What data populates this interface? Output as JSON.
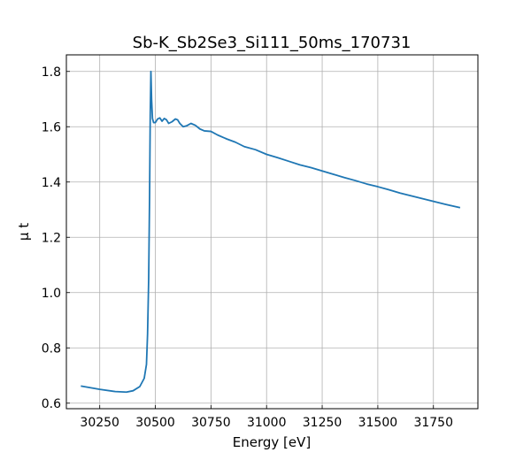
{
  "chart_data": {
    "type": "line",
    "title": "Sb-K_Sb2Se3_Si111_50ms_170731",
    "xlabel": "Energy [eV]",
    "ylabel": "μ t",
    "xlim": [
      30100,
      31950
    ],
    "ylim": [
      0.58,
      1.86
    ],
    "xticks": [
      30250,
      30500,
      30750,
      31000,
      31250,
      31500,
      31750
    ],
    "yticks": [
      0.6,
      0.8,
      1.0,
      1.2,
      1.4,
      1.6,
      1.8
    ],
    "xtick_labels": [
      "30250",
      "30500",
      "30750",
      "31000",
      "31250",
      "31500",
      "31750"
    ],
    "ytick_labels": [
      "0.6",
      "0.8",
      "1.0",
      "1.2",
      "1.4",
      "1.6",
      "1.8"
    ],
    "grid": true,
    "color": "#1f77b4",
    "series": [
      {
        "x": [
          30165,
          30250,
          30320,
          30370,
          30400,
          30430,
          30450,
          30460,
          30465,
          30470,
          30474,
          30477,
          30480,
          30483,
          30487,
          30492,
          30500,
          30510,
          30520,
          30530,
          30540,
          30550,
          30560,
          30575,
          30590,
          30600,
          30610,
          30625,
          30640,
          30660,
          30680,
          30700,
          30720,
          30750,
          30780,
          30820,
          30860,
          30900,
          30950,
          31000,
          31050,
          31100,
          31150,
          31200,
          31250,
          31300,
          31350,
          31400,
          31450,
          31500,
          31550,
          31600,
          31650,
          31700,
          31750,
          31800,
          31870
        ],
        "y": [
          0.662,
          0.65,
          0.642,
          0.64,
          0.645,
          0.66,
          0.69,
          0.74,
          0.85,
          1.05,
          1.35,
          1.64,
          1.8,
          1.7,
          1.63,
          1.615,
          1.615,
          1.628,
          1.632,
          1.62,
          1.63,
          1.625,
          1.612,
          1.618,
          1.628,
          1.625,
          1.612,
          1.6,
          1.603,
          1.612,
          1.605,
          1.592,
          1.585,
          1.583,
          1.57,
          1.556,
          1.544,
          1.528,
          1.517,
          1.5,
          1.488,
          1.475,
          1.462,
          1.452,
          1.44,
          1.428,
          1.416,
          1.405,
          1.393,
          1.383,
          1.372,
          1.36,
          1.35,
          1.34,
          1.33,
          1.32,
          1.307
        ]
      }
    ]
  }
}
